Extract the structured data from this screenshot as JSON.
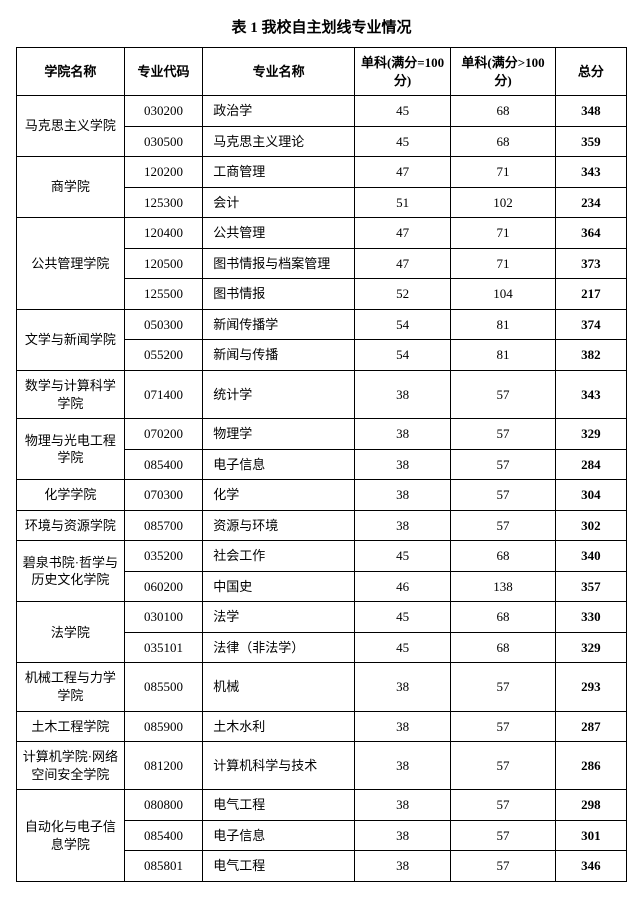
{
  "title": "表 1  我校自主划线专业情况",
  "headers": {
    "college": "学院名称",
    "code": "专业代码",
    "major": "专业名称",
    "score1": "单科(满分=100 分)",
    "score2": "单科(满分>100 分)",
    "total": "总分"
  },
  "groups": [
    {
      "college": "马克思主义学院",
      "rows": [
        {
          "code": "030200",
          "major": "政治学",
          "s1": "45",
          "s2": "68",
          "total": "348"
        },
        {
          "code": "030500",
          "major": "马克思主义理论",
          "s1": "45",
          "s2": "68",
          "total": "359"
        }
      ]
    },
    {
      "college": "商学院",
      "rows": [
        {
          "code": "120200",
          "major": "工商管理",
          "s1": "47",
          "s2": "71",
          "total": "343"
        },
        {
          "code": "125300",
          "major": "会计",
          "s1": "51",
          "s2": "102",
          "total": "234"
        }
      ]
    },
    {
      "college": "公共管理学院",
      "rows": [
        {
          "code": "120400",
          "major": "公共管理",
          "s1": "47",
          "s2": "71",
          "total": "364"
        },
        {
          "code": "120500",
          "major": "图书情报与档案管理",
          "s1": "47",
          "s2": "71",
          "total": "373"
        },
        {
          "code": "125500",
          "major": "图书情报",
          "s1": "52",
          "s2": "104",
          "total": "217"
        }
      ]
    },
    {
      "college": "文学与新闻学院",
      "rows": [
        {
          "code": "050300",
          "major": "新闻传播学",
          "s1": "54",
          "s2": "81",
          "total": "374"
        },
        {
          "code": "055200",
          "major": "新闻与传播",
          "s1": "54",
          "s2": "81",
          "total": "382"
        }
      ]
    },
    {
      "college": "数学与计算科学学院",
      "rows": [
        {
          "code": "071400",
          "major": "统计学",
          "s1": "38",
          "s2": "57",
          "total": "343"
        }
      ]
    },
    {
      "college": "物理与光电工程学院",
      "rows": [
        {
          "code": "070200",
          "major": "物理学",
          "s1": "38",
          "s2": "57",
          "total": "329"
        },
        {
          "code": "085400",
          "major": "电子信息",
          "s1": "38",
          "s2": "57",
          "total": "284"
        }
      ]
    },
    {
      "college": "化学学院",
      "rows": [
        {
          "code": "070300",
          "major": "化学",
          "s1": "38",
          "s2": "57",
          "total": "304"
        }
      ]
    },
    {
      "college": "环境与资源学院",
      "rows": [
        {
          "code": "085700",
          "major": "资源与环境",
          "s1": "38",
          "s2": "57",
          "total": "302"
        }
      ]
    },
    {
      "college": "碧泉书院·哲学与历史文化学院",
      "rows": [
        {
          "code": "035200",
          "major": "社会工作",
          "s1": "45",
          "s2": "68",
          "total": "340"
        },
        {
          "code": "060200",
          "major": "中国史",
          "s1": "46",
          "s2": "138",
          "total": "357"
        }
      ]
    },
    {
      "college": "法学院",
      "rows": [
        {
          "code": "030100",
          "major": "法学",
          "s1": "45",
          "s2": "68",
          "total": "330"
        },
        {
          "code": "035101",
          "major": "法律（非法学）",
          "s1": "45",
          "s2": "68",
          "total": "329"
        }
      ]
    },
    {
      "college": "机械工程与力学学院",
      "rows": [
        {
          "code": "085500",
          "major": "机械",
          "s1": "38",
          "s2": "57",
          "total": "293"
        }
      ]
    },
    {
      "college": "土木工程学院",
      "rows": [
        {
          "code": "085900",
          "major": "土木水利",
          "s1": "38",
          "s2": "57",
          "total": "287"
        }
      ]
    },
    {
      "college": "计算机学院·网络空间安全学院",
      "rows": [
        {
          "code": "081200",
          "major": "计算机科学与技术",
          "s1": "38",
          "s2": "57",
          "total": "286"
        }
      ]
    },
    {
      "college": "自动化与电子信息学院",
      "rows": [
        {
          "code": "080800",
          "major": "电气工程",
          "s1": "38",
          "s2": "57",
          "total": "298"
        },
        {
          "code": "085400",
          "major": "电子信息",
          "s1": "38",
          "s2": "57",
          "total": "301"
        },
        {
          "code": "085801",
          "major": "电气工程",
          "s1": "38",
          "s2": "57",
          "total": "346"
        }
      ]
    }
  ]
}
